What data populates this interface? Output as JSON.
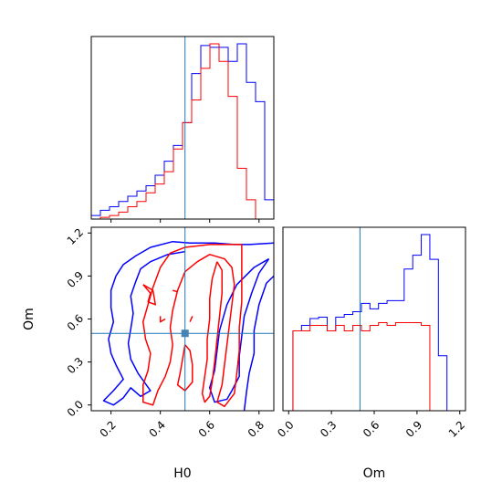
{
  "chart_data": {
    "type": "corner",
    "parameters": [
      "H0",
      "Om"
    ],
    "truth": {
      "H0": 0.5,
      "Om": 0.5
    },
    "colors": {
      "series_a": "#0000ff",
      "series_b": "#ff0000",
      "truth": "#1f77b4",
      "truth_marker": "#4682b4"
    },
    "panels": [
      {
        "id": "hist-H0",
        "type": "histogram",
        "xlim": [
          0.12,
          0.86
        ],
        "bin_edges": [
          0.12,
          0.157,
          0.194,
          0.231,
          0.268,
          0.305,
          0.342,
          0.379,
          0.416,
          0.453,
          0.49,
          0.527,
          0.564,
          0.601,
          0.638,
          0.675,
          0.712,
          0.749,
          0.786,
          0.823,
          0.86
        ],
        "series": [
          {
            "color_key": "series_a",
            "counts": [
              2,
              5,
              7,
              10,
              13,
              16,
              19,
              25,
              33,
              42,
              55,
              83,
              99,
              98,
              98,
              90,
              100,
              78,
              67,
              11
            ]
          },
          {
            "color_key": "series_b",
            "counts": [
              0,
              1,
              2,
              4,
              7,
              10,
              15,
              20,
              27,
              40,
              55,
              68,
              86,
              100,
              90,
              70,
              29,
              11,
              0,
              0
            ]
          }
        ],
        "xtick_values": [
          0.2,
          0.4,
          0.6,
          0.8
        ],
        "show_tick_labels": false
      },
      {
        "id": "hist-Om",
        "type": "histogram",
        "xlim": [
          -0.04,
          1.24
        ],
        "xlabel": "Om",
        "xtick_values": [
          0.0,
          0.3,
          0.6,
          0.9,
          1.2
        ],
        "xtick_labels": [
          "0.0",
          "0.3",
          "0.6",
          "0.9",
          "1.2"
        ],
        "bin_edges": [
          -0.03,
          0.03,
          0.09,
          0.15,
          0.21,
          0.27,
          0.33,
          0.39,
          0.45,
          0.51,
          0.57,
          0.63,
          0.69,
          0.75,
          0.81,
          0.87,
          0.93,
          0.99,
          1.05,
          1.11,
          1.17
        ],
        "series": [
          {
            "color_key": "series_a",
            "counts": [
              0,
              58,
              62,
              67,
              68,
              58,
              68,
              70,
              72,
              78,
              74,
              78,
              80,
              80,
              103,
              113,
              128,
              110,
              40,
              0
            ]
          },
          {
            "color_key": "series_b",
            "counts": [
              0,
              58,
              58,
              62,
              62,
              58,
              62,
              58,
              62,
              58,
              62,
              64,
              62,
              64,
              64,
              64,
              62,
              0,
              0,
              0
            ]
          }
        ]
      },
      {
        "id": "contour-H0-Om",
        "type": "contour",
        "xlim": [
          0.12,
          0.86
        ],
        "ylim": [
          -0.04,
          1.24
        ],
        "xlabel": "H0",
        "ylabel": "Om",
        "xtick_values": [
          0.2,
          0.4,
          0.6,
          0.8
        ],
        "xtick_labels": [
          "0.2",
          "0.4",
          "0.6",
          "0.8"
        ],
        "ytick_values": [
          0.0,
          0.3,
          0.6,
          0.9,
          1.2
        ],
        "ytick_labels": [
          "0.0",
          "0.3",
          "0.6",
          "0.9",
          "1.2"
        ],
        "contours": [
          {
            "color_key": "series_a",
            "level": "outer",
            "points": [
              [
                0.86,
                1.13
              ],
              [
                0.76,
                1.12
              ],
              [
                0.7,
                1.12
              ],
              [
                0.62,
                1.13
              ],
              [
                0.52,
                1.13
              ],
              [
                0.45,
                1.14
              ],
              [
                0.36,
                1.1
              ],
              [
                0.3,
                1.04
              ],
              [
                0.25,
                0.98
              ],
              [
                0.22,
                0.9
              ],
              [
                0.2,
                0.8
              ],
              [
                0.2,
                0.68
              ],
              [
                0.21,
                0.58
              ],
              [
                0.19,
                0.46
              ],
              [
                0.2,
                0.36
              ],
              [
                0.22,
                0.28
              ],
              [
                0.25,
                0.18
              ],
              [
                0.21,
                0.1
              ],
              [
                0.17,
                0.03
              ],
              [
                0.21,
                0.0
              ],
              [
                0.25,
                0.05
              ],
              [
                0.28,
                0.12
              ],
              [
                0.32,
                0.06
              ],
              [
                0.36,
                0.1
              ],
              [
                0.31,
                0.22
              ],
              [
                0.28,
                0.32
              ],
              [
                0.27,
                0.43
              ],
              [
                0.28,
                0.53
              ],
              [
                0.29,
                0.64
              ],
              [
                0.28,
                0.76
              ],
              [
                0.3,
                0.86
              ],
              [
                0.32,
                0.95
              ],
              [
                0.36,
                1.0
              ],
              [
                0.43,
                1.05
              ],
              [
                0.5,
                1.07
              ]
            ]
          },
          {
            "color_key": "series_a",
            "level": "outer",
            "points": [
              [
                0.86,
                0.9
              ],
              [
                0.83,
                0.85
              ],
              [
                0.8,
                0.7
              ],
              [
                0.78,
                0.52
              ],
              [
                0.78,
                0.36
              ],
              [
                0.76,
                0.22
              ],
              [
                0.75,
                0.1
              ],
              [
                0.74,
                -0.04
              ]
            ]
          },
          {
            "color_key": "series_a",
            "level": "inner",
            "points": [
              [
                0.84,
                1.02
              ],
              [
                0.8,
                0.92
              ],
              [
                0.77,
                0.78
              ],
              [
                0.74,
                0.62
              ],
              [
                0.73,
                0.48
              ],
              [
                0.72,
                0.34
              ],
              [
                0.72,
                0.2
              ],
              [
                0.69,
                0.1
              ],
              [
                0.67,
                0.04
              ],
              [
                0.62,
                0.02
              ],
              [
                0.6,
                0.12
              ],
              [
                0.62,
                0.24
              ],
              [
                0.63,
                0.38
              ],
              [
                0.64,
                0.52
              ],
              [
                0.67,
                0.7
              ],
              [
                0.71,
                0.84
              ],
              [
                0.78,
                0.96
              ],
              [
                0.84,
                1.02
              ]
            ]
          },
          {
            "color_key": "series_b",
            "level": "outer",
            "points": [
              [
                0.73,
                1.12
              ],
              [
                0.6,
                1.12
              ],
              [
                0.5,
                1.1
              ],
              [
                0.44,
                1.06
              ],
              [
                0.4,
                0.96
              ],
              [
                0.37,
                0.82
              ],
              [
                0.35,
                0.7
              ],
              [
                0.33,
                0.58
              ],
              [
                0.34,
                0.46
              ],
              [
                0.36,
                0.36
              ],
              [
                0.35,
                0.24
              ],
              [
                0.33,
                0.14
              ],
              [
                0.33,
                0.02
              ],
              [
                0.37,
                0.0
              ],
              [
                0.39,
                0.1
              ],
              [
                0.42,
                0.2
              ],
              [
                0.44,
                0.3
              ],
              [
                0.45,
                0.42
              ],
              [
                0.44,
                0.54
              ],
              [
                0.45,
                0.66
              ],
              [
                0.47,
                0.8
              ],
              [
                0.5,
                0.93
              ],
              [
                0.55,
                1.0
              ],
              [
                0.6,
                1.05
              ],
              [
                0.66,
                1.02
              ],
              [
                0.69,
                0.96
              ],
              [
                0.7,
                0.84
              ],
              [
                0.69,
                0.7
              ],
              [
                0.68,
                0.56
              ],
              [
                0.67,
                0.42
              ],
              [
                0.66,
                0.28
              ],
              [
                0.65,
                0.14
              ],
              [
                0.63,
                0.02
              ],
              [
                0.66,
                -0.01
              ],
              [
                0.7,
                0.08
              ],
              [
                0.71,
                0.22
              ],
              [
                0.72,
                0.38
              ],
              [
                0.72,
                0.54
              ],
              [
                0.73,
                0.72
              ],
              [
                0.73,
                0.92
              ],
              [
                0.73,
                1.12
              ]
            ]
          },
          {
            "color_key": "series_b",
            "level": "inner",
            "points": [
              [
                0.63,
                1.0
              ],
              [
                0.61,
                0.88
              ],
              [
                0.6,
                0.74
              ],
              [
                0.6,
                0.6
              ],
              [
                0.59,
                0.46
              ],
              [
                0.59,
                0.32
              ],
              [
                0.58,
                0.2
              ],
              [
                0.57,
                0.08
              ],
              [
                0.58,
                0.02
              ],
              [
                0.6,
                0.06
              ],
              [
                0.61,
                0.16
              ],
              [
                0.62,
                0.3
              ],
              [
                0.63,
                0.46
              ],
              [
                0.64,
                0.62
              ],
              [
                0.65,
                0.78
              ],
              [
                0.65,
                0.94
              ],
              [
                0.63,
                1.0
              ]
            ]
          },
          {
            "color_key": "series_b",
            "level": "inner",
            "points": [
              [
                0.5,
                0.42
              ],
              [
                0.49,
                0.32
              ],
              [
                0.48,
                0.22
              ],
              [
                0.47,
                0.14
              ],
              [
                0.5,
                0.1
              ],
              [
                0.53,
                0.16
              ],
              [
                0.53,
                0.28
              ],
              [
                0.52,
                0.38
              ],
              [
                0.5,
                0.42
              ]
            ]
          },
          {
            "color_key": "series_b",
            "level": "blob",
            "points": [
              [
                0.33,
                0.84
              ],
              [
                0.36,
                0.78
              ],
              [
                0.35,
                0.72
              ],
              [
                0.38,
                0.7
              ],
              [
                0.37,
                0.8
              ],
              [
                0.33,
                0.84
              ]
            ]
          },
          {
            "color_key": "series_b",
            "level": "blob",
            "points": [
              [
                0.45,
                0.8
              ],
              [
                0.47,
                0.79
              ]
            ]
          },
          {
            "color_key": "series_b",
            "level": "blob",
            "points": [
              [
                0.4,
                0.62
              ],
              [
                0.4,
                0.58
              ],
              [
                0.42,
                0.6
              ]
            ]
          },
          {
            "color_key": "series_b",
            "level": "blob",
            "points": [
              [
                0.52,
                0.58
              ],
              [
                0.53,
                0.62
              ]
            ]
          }
        ]
      }
    ]
  }
}
